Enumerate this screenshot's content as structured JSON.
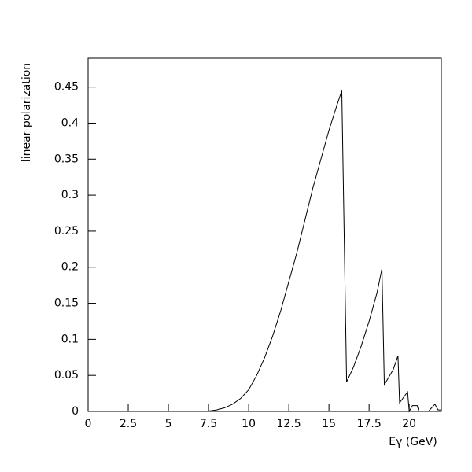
{
  "chart_data": {
    "type": "line",
    "x_label": "Eγ (GeV)",
    "y_label": "linear polarization",
    "x": [
      6.7,
      7.5,
      8.0,
      8.5,
      9.0,
      9.5,
      10.0,
      10.5,
      11.0,
      11.5,
      12.0,
      12.5,
      13.0,
      13.5,
      14.0,
      14.5,
      15.0,
      15.5,
      15.8,
      16.1,
      16.5,
      17.0,
      17.5,
      18.0,
      18.3,
      18.45,
      19.0,
      19.3,
      19.4,
      19.9,
      20.0,
      20.2,
      20.5,
      20.6,
      21.2,
      21.6,
      21.8,
      22.0
    ],
    "series": [
      {
        "name": "linear polarization",
        "color": "#000000",
        "values": [
          0,
          0.0005,
          0.002,
          0.005,
          0.01,
          0.018,
          0.03,
          0.05,
          0.075,
          0.105,
          0.14,
          0.18,
          0.22,
          0.265,
          0.31,
          0.35,
          0.39,
          0.425,
          0.445,
          0.041,
          0.06,
          0.09,
          0.125,
          0.165,
          0.198,
          0.037,
          0.058,
          0.077,
          0.012,
          0.027,
          0,
          0.008,
          0.008,
          0,
          0,
          0.01,
          0.002,
          0.002
        ]
      }
    ],
    "xlim": [
      0,
      22
    ],
    "ylim": [
      0,
      0.49
    ],
    "xticks": [
      0,
      2.5,
      5,
      7.5,
      10,
      12.5,
      15,
      17.5,
      20
    ],
    "yticks": [
      0,
      0.05,
      0.1,
      0.15,
      0.2,
      0.25,
      0.3,
      0.35,
      0.4,
      0.45
    ]
  }
}
